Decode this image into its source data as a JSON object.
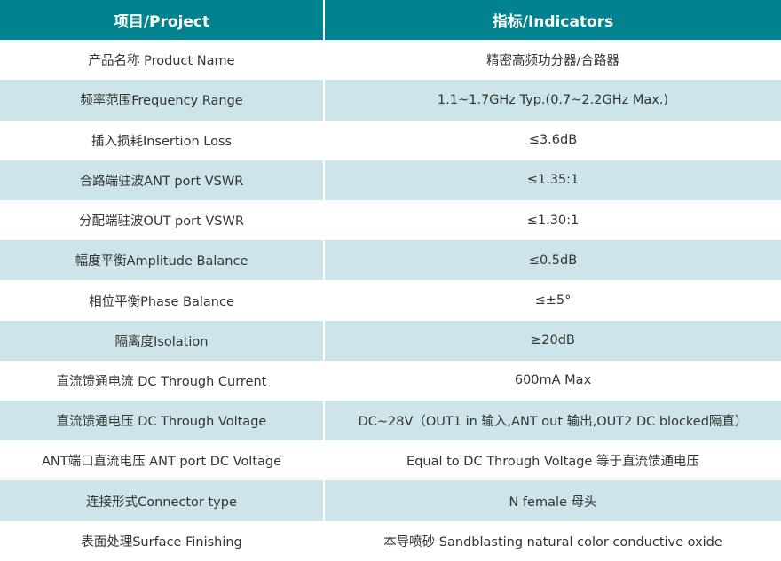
{
  "header": {
    "col1": "项目/Project",
    "col2": "指标/Indicators"
  },
  "colors": {
    "header_bg": "#00838f",
    "alt_row_bg": "#cde5ea"
  },
  "rows": [
    {
      "project": "产品名称 Product Name",
      "indicator": "精密高频功分器/合路器"
    },
    {
      "project": "频率范围Frequency Range",
      "indicator": "1.1~1.7GHz Typ.(0.7~2.2GHz Max.)"
    },
    {
      "project": "插入损耗Insertion Loss",
      "indicator": "≤3.6dB"
    },
    {
      "project": "合路端驻波ANT port VSWR",
      "indicator": "≤1.35:1"
    },
    {
      "project": "分配端驻波OUT port VSWR",
      "indicator": "≤1.30:1"
    },
    {
      "project": "幅度平衡Amplitude Balance",
      "indicator": "≤0.5dB"
    },
    {
      "project": "相位平衡Phase Balance",
      "indicator": "≤±5°"
    },
    {
      "project": "隔离度Isolation",
      "indicator": "≥20dB"
    },
    {
      "project": "直流馈通电流 DC Through Current",
      "indicator": "600mA Max"
    },
    {
      "project": "直流馈通电压 DC Through Voltage",
      "indicator": "DC~28V（OUT1 in 输入,ANT out 输出,OUT2 DC blocked隔直）"
    },
    {
      "project": "ANT端口直流电压 ANT port DC Voltage",
      "indicator": "Equal to DC Through Voltage 等于直流馈通电压"
    },
    {
      "project": "连接形式Connector type",
      "indicator": "N female 母头"
    },
    {
      "project": "表面处理Surface Finishing",
      "indicator": "本导喷砂 Sandblasting natural color conductive oxide"
    }
  ]
}
